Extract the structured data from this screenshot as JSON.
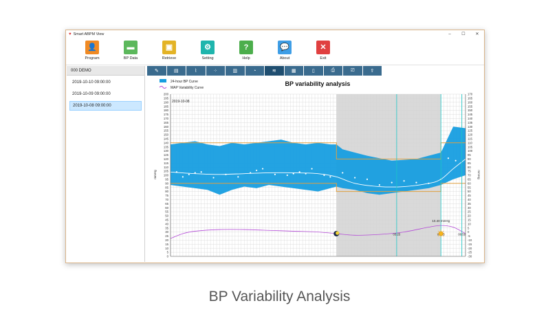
{
  "window": {
    "title": "Smart ABPM View",
    "controls": {
      "minimize": "–",
      "maximize": "☐",
      "close": "✕"
    }
  },
  "toolbar": {
    "buttons": [
      {
        "label": "Program",
        "icon": "add-user-icon",
        "color": "#f08a24"
      },
      {
        "label": "BP Data",
        "icon": "folder-icon",
        "color": "#5cb85c"
      },
      {
        "label": "Retrieve",
        "icon": "card-icon",
        "color": "#e3b326"
      },
      {
        "label": "Setting",
        "icon": "gear-icon",
        "color": "#1fb5ad"
      },
      {
        "label": "Help",
        "icon": "question-icon",
        "color": "#4cae4c"
      },
      {
        "label": "About",
        "icon": "chat-icon",
        "color": "#3f9ee6"
      },
      {
        "label": "Exit",
        "icon": "close-icon",
        "color": "#e04040"
      }
    ]
  },
  "sidebar": {
    "header": "000 DEMO",
    "items": [
      {
        "label": "2019-10-10 09:00:00",
        "selected": false
      },
      {
        "label": "2019-10-09 09:00:00",
        "selected": false
      },
      {
        "label": "2019-10-08 09:00:00",
        "selected": true
      }
    ]
  },
  "tabs": [
    {
      "icon": "edit-icon",
      "active": false
    },
    {
      "icon": "book-icon",
      "active": false
    },
    {
      "icon": "trend-chart-icon",
      "active": false
    },
    {
      "icon": "scatter-chart-icon",
      "active": false
    },
    {
      "icon": "bar-chart-icon",
      "active": false
    },
    {
      "icon": "pie-chart-icon",
      "active": false
    },
    {
      "icon": "variability-chart-icon",
      "active": true
    },
    {
      "icon": "histogram-icon",
      "active": false
    },
    {
      "icon": "document-icon",
      "active": false
    },
    {
      "icon": "pdf-icon",
      "active": false
    },
    {
      "icon": "printer-icon",
      "active": false
    },
    {
      "icon": "export-icon",
      "active": false
    }
  ],
  "chart_data": {
    "type": "area",
    "title": "BP variability analysis",
    "date_label": "2019-10-08",
    "left_axis_label": "mmHg",
    "right_axis_label": "mmHg",
    "y_left_range": [
      0,
      200
    ],
    "y_right_range": [
      -30,
      170
    ],
    "y_left_ticks": [
      0,
      5,
      10,
      15,
      20,
      25,
      30,
      35,
      40,
      45,
      50,
      55,
      60,
      65,
      70,
      75,
      80,
      85,
      90,
      95,
      100,
      105,
      110,
      115,
      120,
      125,
      130,
      135,
      140,
      145,
      150,
      155,
      160,
      165,
      170,
      175,
      180,
      185,
      190,
      195,
      200
    ],
    "y_right_ticks": [
      -30,
      -25,
      -20,
      -15,
      -10,
      -5,
      0,
      5,
      10,
      15,
      20,
      25,
      30,
      35,
      40,
      45,
      50,
      55,
      60,
      65,
      70,
      75,
      80,
      85,
      90,
      95,
      100,
      105,
      110,
      115,
      120,
      125,
      130,
      135,
      140,
      145,
      150,
      155,
      160,
      165,
      170
    ],
    "x_range": [
      0,
      24
    ],
    "legend": [
      {
        "name": "24-hour BP Curve",
        "color": "#179ee0"
      },
      {
        "name": "MAP Variability Curve",
        "color": "#b44ad8"
      }
    ],
    "night_period": [
      13.5,
      22
    ],
    "markers": [
      {
        "label": "03:25",
        "x": 18.4
      },
      {
        "label": "07:05",
        "x": 22
      },
      {
        "label": "08:59",
        "x": 23.7
      }
    ],
    "annotation": {
      "text": "10.40 mmHg",
      "x": 22,
      "y": 38
    },
    "moon_x": 13.5,
    "sun_x": 22,
    "upper_limits": [
      {
        "x1": 0,
        "x2": 13.5,
        "y": 140
      },
      {
        "x1": 13.5,
        "x2": 22,
        "y": 120
      },
      {
        "x1": 22,
        "x2": 24,
        "y": 140
      }
    ],
    "lower_limits": [
      {
        "x1": 0,
        "x2": 13.5,
        "y": 90
      },
      {
        "x1": 13.5,
        "x2": 22,
        "y": 80
      },
      {
        "x1": 22,
        "x2": 24,
        "y": 90
      }
    ],
    "bp_band": {
      "x": [
        0,
        1,
        2,
        3,
        4,
        5,
        6,
        7,
        8,
        9,
        10,
        11,
        12,
        13,
        13.5,
        14,
        15,
        16,
        17,
        18,
        19,
        20,
        21,
        22,
        23,
        24
      ],
      "systolic": [
        138,
        140,
        142,
        138,
        136,
        140,
        138,
        140,
        142,
        144,
        140,
        138,
        140,
        138,
        138,
        132,
        128,
        124,
        121,
        118,
        119,
        120,
        124,
        128,
        160,
        158
      ],
      "diastolic": [
        88,
        86,
        84,
        82,
        76,
        82,
        86,
        84,
        88,
        86,
        84,
        82,
        80,
        84,
        86,
        84,
        82,
        78,
        76,
        78,
        80,
        82,
        84,
        88,
        95,
        100
      ]
    },
    "readings": {
      "x": [
        0.5,
        1,
        1.5,
        2,
        2.5,
        3.5,
        4.5,
        5.5,
        6.5,
        7,
        7.5,
        8.5,
        9.5,
        10,
        10.5,
        11,
        11.5,
        12.5,
        13,
        14,
        15,
        16,
        17,
        18,
        19,
        20,
        21,
        22,
        22.6,
        23.2
      ],
      "y": [
        104,
        98,
        101,
        103,
        104,
        97,
        101,
        98,
        103,
        106,
        108,
        101,
        100,
        102,
        104,
        102,
        108,
        100,
        98,
        103,
        97,
        95,
        88,
        91,
        93,
        91,
        90,
        95,
        121,
        118
      ]
    },
    "map_trend": {
      "x": [
        0,
        2,
        4,
        6,
        8,
        10,
        12,
        13.5,
        15,
        17,
        19,
        21,
        22,
        23,
        24
      ],
      "y": [
        104,
        102,
        101,
        102,
        103,
        103,
        102,
        98,
        90,
        86,
        86,
        90,
        95,
        108,
        120
      ]
    },
    "map_variability": {
      "x": [
        0,
        1,
        2,
        4,
        6,
        8,
        10,
        12,
        13.5,
        15,
        17,
        19,
        21,
        22,
        23,
        24
      ],
      "y": [
        22,
        28,
        31,
        33,
        33,
        32,
        31,
        30,
        28,
        26,
        27,
        30,
        36,
        38,
        36,
        28
      ]
    }
  },
  "caption": "BP Variability Analysis"
}
